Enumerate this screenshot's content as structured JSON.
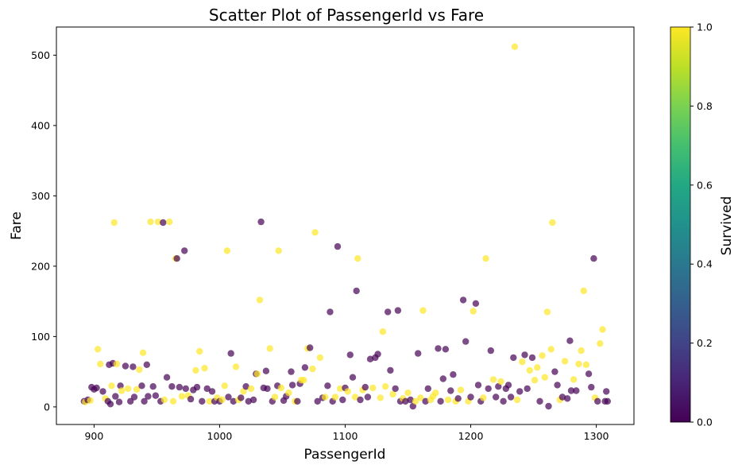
{
  "chart_data": {
    "type": "scatter",
    "title": "Scatter Plot of PassengerId vs Fare",
    "xlabel": "PassengerId",
    "ylabel": "Fare",
    "xlim": [
      870,
      1330
    ],
    "ylim": [
      -25,
      540
    ],
    "x_ticks": [
      900,
      1000,
      1100,
      1200,
      1300
    ],
    "y_ticks": [
      0,
      100,
      200,
      300,
      400,
      500
    ],
    "grid": false,
    "colorbar": {
      "label": "Survived",
      "colormap": "viridis",
      "range": [
        0.0,
        1.0
      ],
      "ticks": [
        "0.0",
        "0.2",
        "0.4",
        "0.6",
        "0.8",
        "1.0"
      ]
    },
    "colors": {
      "survived_0": "#440154",
      "survived_1": "#fde725"
    },
    "points": [
      [
        892,
        8,
        0
      ],
      [
        893,
        7,
        1
      ],
      [
        895,
        10,
        0
      ],
      [
        897,
        9,
        1
      ],
      [
        898,
        28,
        0
      ],
      [
        900,
        25,
        0
      ],
      [
        902,
        27,
        0
      ],
      [
        903,
        82,
        1
      ],
      [
        905,
        61,
        1
      ],
      [
        907,
        22,
        0
      ],
      [
        909,
        12,
        1
      ],
      [
        911,
        8,
        0
      ],
      [
        912,
        60,
        0
      ],
      [
        913,
        4,
        0
      ],
      [
        914,
        30,
        1
      ],
      [
        915,
        62,
        0
      ],
      [
        916,
        262,
        1
      ],
      [
        917,
        15,
        0
      ],
      [
        918,
        61,
        1
      ],
      [
        920,
        7,
        0
      ],
      [
        921,
        30,
        0
      ],
      [
        922,
        23,
        1
      ],
      [
        925,
        58,
        0
      ],
      [
        927,
        26,
        1
      ],
      [
        929,
        8,
        0
      ],
      [
        931,
        57,
        0
      ],
      [
        932,
        14,
        0
      ],
      [
        934,
        25,
        1
      ],
      [
        936,
        53,
        1
      ],
      [
        938,
        30,
        0
      ],
      [
        939,
        77,
        1
      ],
      [
        940,
        8,
        0
      ],
      [
        942,
        60,
        0
      ],
      [
        943,
        15,
        0
      ],
      [
        945,
        263,
        1
      ],
      [
        947,
        29,
        0
      ],
      [
        949,
        16,
        0
      ],
      [
        951,
        263,
        1
      ],
      [
        953,
        8,
        0
      ],
      [
        955,
        262,
        0
      ],
      [
        956,
        10,
        1
      ],
      [
        958,
        42,
        0
      ],
      [
        960,
        263,
        1
      ],
      [
        962,
        29,
        0
      ],
      [
        963,
        8,
        1
      ],
      [
        965,
        211,
        1
      ],
      [
        966,
        211,
        0
      ],
      [
        968,
        28,
        0
      ],
      [
        970,
        15,
        1
      ],
      [
        972,
        222,
        0
      ],
      [
        973,
        26,
        0
      ],
      [
        975,
        16,
        1
      ],
      [
        977,
        11,
        0
      ],
      [
        979,
        24,
        0
      ],
      [
        981,
        52,
        1
      ],
      [
        982,
        28,
        0
      ],
      [
        984,
        79,
        1
      ],
      [
        986,
        8,
        0
      ],
      [
        988,
        55,
        1
      ],
      [
        990,
        26,
        0
      ],
      [
        992,
        8,
        1
      ],
      [
        994,
        22,
        0
      ],
      [
        996,
        8,
        0
      ],
      [
        998,
        13,
        1
      ],
      [
        1000,
        8,
        0
      ],
      [
        1002,
        10,
        1
      ],
      [
        1004,
        30,
        1
      ],
      [
        1006,
        222,
        1
      ],
      [
        1007,
        14,
        0
      ],
      [
        1009,
        76,
        0
      ],
      [
        1011,
        8,
        0
      ],
      [
        1013,
        57,
        1
      ],
      [
        1015,
        10,
        1
      ],
      [
        1017,
        13,
        0
      ],
      [
        1019,
        22,
        1
      ],
      [
        1021,
        29,
        0
      ],
      [
        1023,
        8,
        0
      ],
      [
        1025,
        26,
        1
      ],
      [
        1027,
        10,
        0
      ],
      [
        1029,
        47,
        0
      ],
      [
        1030,
        47,
        1
      ],
      [
        1032,
        152,
        1
      ],
      [
        1033,
        263,
        0
      ],
      [
        1035,
        27,
        0
      ],
      [
        1037,
        51,
        0
      ],
      [
        1038,
        26,
        0
      ],
      [
        1040,
        83,
        1
      ],
      [
        1042,
        8,
        0
      ],
      [
        1044,
        14,
        1
      ],
      [
        1046,
        30,
        0
      ],
      [
        1047,
        222,
        1
      ],
      [
        1049,
        27,
        1
      ],
      [
        1051,
        9,
        0
      ],
      [
        1053,
        15,
        0
      ],
      [
        1055,
        20,
        1
      ],
      [
        1057,
        50,
        0
      ],
      [
        1058,
        31,
        0
      ],
      [
        1060,
        8,
        1
      ],
      [
        1062,
        8,
        0
      ],
      [
        1064,
        33,
        0
      ],
      [
        1065,
        38,
        1
      ],
      [
        1067,
        38,
        1
      ],
      [
        1068,
        56,
        0
      ],
      [
        1070,
        83,
        1
      ],
      [
        1072,
        84,
        0
      ],
      [
        1074,
        54,
        1
      ],
      [
        1076,
        248,
        1
      ],
      [
        1078,
        8,
        0
      ],
      [
        1080,
        70,
        1
      ],
      [
        1082,
        13,
        0
      ],
      [
        1084,
        14,
        1
      ],
      [
        1086,
        30,
        0
      ],
      [
        1088,
        135,
        0
      ],
      [
        1090,
        8,
        0
      ],
      [
        1092,
        14,
        1
      ],
      [
        1094,
        228,
        0
      ],
      [
        1096,
        26,
        1
      ],
      [
        1098,
        10,
        0
      ],
      [
        1100,
        27,
        0
      ],
      [
        1102,
        22,
        1
      ],
      [
        1104,
        74,
        0
      ],
      [
        1106,
        42,
        0
      ],
      [
        1108,
        14,
        1
      ],
      [
        1109,
        165,
        0
      ],
      [
        1110,
        211,
        1
      ],
      [
        1112,
        10,
        0
      ],
      [
        1114,
        24,
        1
      ],
      [
        1116,
        28,
        0
      ],
      [
        1118,
        14,
        0
      ],
      [
        1120,
        68,
        0
      ],
      [
        1122,
        27,
        1
      ],
      [
        1124,
        70,
        0
      ],
      [
        1126,
        75,
        0
      ],
      [
        1128,
        13,
        1
      ],
      [
        1130,
        107,
        1
      ],
      [
        1132,
        29,
        1
      ],
      [
        1134,
        135,
        0
      ],
      [
        1136,
        52,
        0
      ],
      [
        1138,
        18,
        1
      ],
      [
        1140,
        26,
        0
      ],
      [
        1142,
        137,
        0
      ],
      [
        1144,
        8,
        0
      ],
      [
        1146,
        12,
        1
      ],
      [
        1148,
        8,
        0
      ],
      [
        1150,
        20,
        1
      ],
      [
        1152,
        10,
        0
      ],
      [
        1154,
        1,
        0
      ],
      [
        1156,
        8,
        1
      ],
      [
        1158,
        76,
        0
      ],
      [
        1160,
        13,
        1
      ],
      [
        1162,
        137,
        1
      ],
      [
        1164,
        8,
        0
      ],
      [
        1166,
        26,
        0
      ],
      [
        1168,
        10,
        1
      ],
      [
        1170,
        15,
        1
      ],
      [
        1172,
        20,
        1
      ],
      [
        1174,
        83,
        0
      ],
      [
        1176,
        8,
        0
      ],
      [
        1178,
        40,
        0
      ],
      [
        1180,
        82,
        0
      ],
      [
        1182,
        10,
        1
      ],
      [
        1184,
        23,
        0
      ],
      [
        1186,
        46,
        0
      ],
      [
        1188,
        8,
        1
      ],
      [
        1190,
        12,
        0
      ],
      [
        1192,
        24,
        1
      ],
      [
        1194,
        152,
        0
      ],
      [
        1196,
        93,
        0
      ],
      [
        1198,
        8,
        1
      ],
      [
        1200,
        14,
        0
      ],
      [
        1202,
        136,
        1
      ],
      [
        1204,
        147,
        0
      ],
      [
        1206,
        31,
        0
      ],
      [
        1208,
        8,
        0
      ],
      [
        1210,
        13,
        1
      ],
      [
        1212,
        211,
        1
      ],
      [
        1214,
        26,
        0
      ],
      [
        1216,
        80,
        0
      ],
      [
        1218,
        39,
        1
      ],
      [
        1220,
        14,
        0
      ],
      [
        1222,
        29,
        0
      ],
      [
        1224,
        36,
        1
      ],
      [
        1226,
        8,
        0
      ],
      [
        1228,
        26,
        0
      ],
      [
        1230,
        31,
        0
      ],
      [
        1232,
        14,
        0
      ],
      [
        1234,
        70,
        0
      ],
      [
        1235,
        512,
        1
      ],
      [
        1237,
        10,
        1
      ],
      [
        1239,
        22,
        0
      ],
      [
        1241,
        64,
        1
      ],
      [
        1243,
        74,
        0
      ],
      [
        1245,
        26,
        0
      ],
      [
        1247,
        52,
        1
      ],
      [
        1249,
        70,
        0
      ],
      [
        1251,
        38,
        1
      ],
      [
        1253,
        56,
        1
      ],
      [
        1255,
        8,
        0
      ],
      [
        1257,
        73,
        1
      ],
      [
        1259,
        42,
        1
      ],
      [
        1261,
        135,
        1
      ],
      [
        1262,
        1,
        0
      ],
      [
        1264,
        82,
        1
      ],
      [
        1265,
        262,
        1
      ],
      [
        1267,
        50,
        0
      ],
      [
        1269,
        31,
        0
      ],
      [
        1271,
        10,
        1
      ],
      [
        1273,
        14,
        0
      ],
      [
        1275,
        65,
        1
      ],
      [
        1277,
        12,
        0
      ],
      [
        1279,
        94,
        0
      ],
      [
        1280,
        23,
        0
      ],
      [
        1282,
        39,
        1
      ],
      [
        1284,
        23,
        0
      ],
      [
        1286,
        61,
        1
      ],
      [
        1288,
        80,
        1
      ],
      [
        1290,
        165,
        1
      ],
      [
        1292,
        60,
        1
      ],
      [
        1294,
        47,
        0
      ],
      [
        1296,
        28,
        0
      ],
      [
        1298,
        211,
        0
      ],
      [
        1299,
        13,
        1
      ],
      [
        1301,
        8,
        0
      ],
      [
        1303,
        90,
        1
      ],
      [
        1305,
        110,
        1
      ],
      [
        1307,
        8,
        0
      ],
      [
        1308,
        22,
        0
      ],
      [
        1309,
        8,
        0
      ]
    ]
  }
}
